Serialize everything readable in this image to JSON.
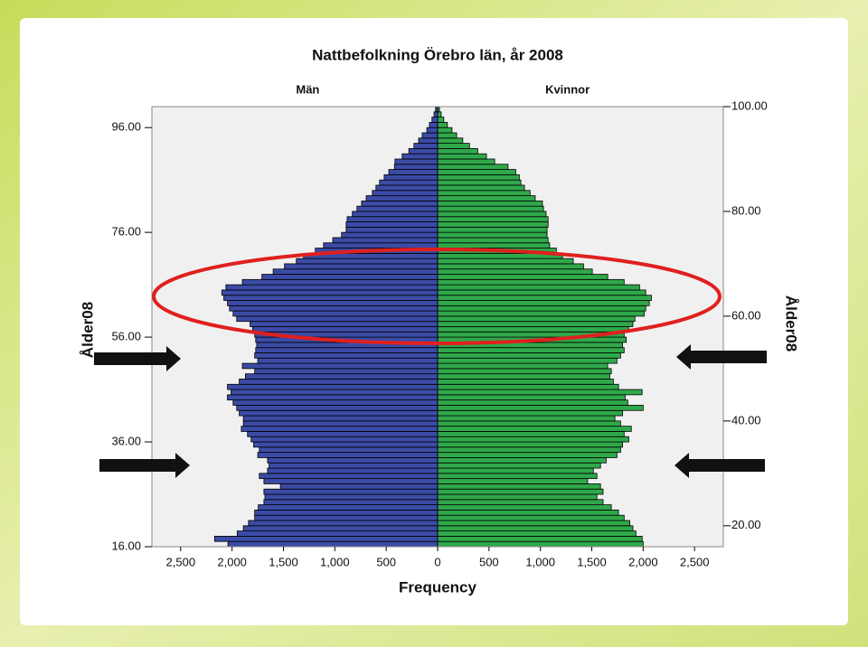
{
  "chart_data": {
    "type": "pyramid",
    "title": "Nattbefolkning Örebro län, år 2008",
    "x_label": "Frequency",
    "y_label": "Ålder08",
    "y2_label": "Ålder08",
    "y": [
      16,
      17,
      18,
      19,
      20,
      21,
      22,
      23,
      24,
      25,
      26,
      27,
      28,
      29,
      30,
      31,
      32,
      33,
      34,
      35,
      36,
      37,
      38,
      39,
      40,
      41,
      42,
      43,
      44,
      45,
      46,
      47,
      48,
      49,
      50,
      51,
      52,
      53,
      54,
      55,
      56,
      57,
      58,
      59,
      60,
      61,
      62,
      63,
      64,
      65,
      66,
      67,
      68,
      69,
      70,
      71,
      72,
      73,
      74,
      75,
      76,
      77,
      78,
      79,
      80,
      81,
      82,
      83,
      84,
      85,
      86,
      87,
      88,
      89,
      90,
      91,
      92,
      93,
      94,
      95,
      96,
      97,
      98,
      99
    ],
    "series": [
      {
        "name": "Män",
        "side": "left",
        "color": "#3b4ba6",
        "values": [
          2040,
          2170,
          1950,
          1890,
          1840,
          1780,
          1780,
          1745,
          1690,
          1680,
          1690,
          1530,
          1690,
          1735,
          1655,
          1640,
          1655,
          1750,
          1735,
          1790,
          1815,
          1850,
          1910,
          1890,
          1890,
          1930,
          1955,
          1990,
          2045,
          2010,
          2045,
          1930,
          1870,
          1780,
          1900,
          1750,
          1780,
          1770,
          1760,
          1770,
          1780,
          1800,
          1825,
          1955,
          1990,
          2025,
          2045,
          2080,
          2100,
          2060,
          1900,
          1710,
          1600,
          1490,
          1375,
          1305,
          1190,
          1110,
          1020,
          935,
          890,
          890,
          880,
          830,
          785,
          740,
          695,
          635,
          600,
          565,
          520,
          475,
          420,
          415,
          345,
          280,
          230,
          185,
          150,
          105,
          80,
          55,
          35,
          20
        ]
      },
      {
        "name": "Kvinnor",
        "side": "right",
        "color": "#2fa84a",
        "values": [
          2000,
          1990,
          1930,
          1900,
          1870,
          1815,
          1760,
          1690,
          1610,
          1550,
          1610,
          1585,
          1460,
          1550,
          1515,
          1585,
          1640,
          1745,
          1780,
          1800,
          1860,
          1815,
          1885,
          1780,
          1725,
          1800,
          2000,
          1850,
          1825,
          1990,
          1760,
          1710,
          1675,
          1690,
          1655,
          1745,
          1780,
          1815,
          1800,
          1835,
          1815,
          1860,
          1900,
          1920,
          2010,
          2025,
          2060,
          2080,
          2025,
          1965,
          1815,
          1655,
          1505,
          1420,
          1320,
          1215,
          1155,
          1090,
          1075,
          1065,
          1065,
          1075,
          1075,
          1055,
          1030,
          1020,
          950,
          900,
          845,
          810,
          795,
          760,
          685,
          555,
          475,
          390,
          310,
          245,
          185,
          140,
          95,
          60,
          35,
          18
        ]
      }
    ],
    "xlim": [
      0,
      2780
    ],
    "xticks": [
      0,
      500,
      {
        "value": 1000,
        "label": "1,000"
      },
      {
        "value": 1500,
        "label": "1,500"
      },
      {
        "value": 2000,
        "label": "2,000"
      },
      {
        "value": 2500,
        "label": "2,500"
      }
    ],
    "ylim": [
      16,
      100
    ],
    "yticks": [
      {
        "value": 16,
        "label": "16.00"
      },
      {
        "value": 36,
        "label": "36.00"
      },
      {
        "value": 56,
        "label": "56.00"
      },
      {
        "value": 76,
        "label": "76.00"
      },
      {
        "value": 96,
        "label": "96.00"
      }
    ],
    "y2ticks": [
      {
        "value": 20,
        "label": "20.00"
      },
      {
        "value": 40,
        "label": "40.00"
      },
      {
        "value": 60,
        "label": "60.00"
      },
      {
        "value": 80,
        "label": "80.00"
      },
      {
        "value": 100,
        "label": "100.00"
      }
    ],
    "background": "#f0f0f0"
  }
}
